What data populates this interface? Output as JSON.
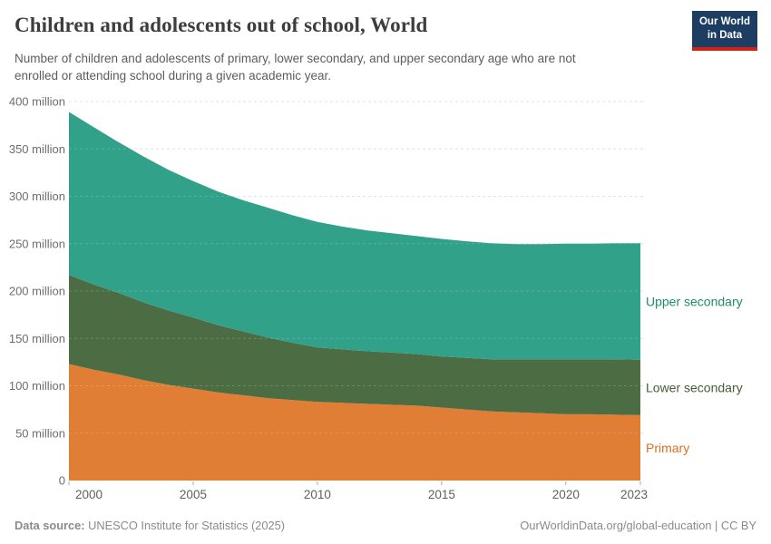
{
  "header": {
    "title": "Children and adolescents out of school, World",
    "subtitle": "Number of children and adolescents of primary, lower secondary, and upper secondary age who are not enrolled or attending school during a given academic year.",
    "logo": {
      "line1": "Our World",
      "line2": "in Data",
      "bg_color": "#1d3d63",
      "accent_color": "#cf2318"
    }
  },
  "chart_data": {
    "type": "area",
    "stacked": true,
    "title": "Children and adolescents out of school, World",
    "xlabel": "",
    "ylabel": "",
    "unit": "million",
    "xlim": [
      2000,
      2023
    ],
    "ylim": [
      0,
      400
    ],
    "grid": true,
    "legend_position": "right",
    "x": [
      2000,
      2001,
      2002,
      2003,
      2004,
      2005,
      2006,
      2007,
      2008,
      2009,
      2010,
      2011,
      2012,
      2013,
      2014,
      2015,
      2016,
      2017,
      2018,
      2019,
      2020,
      2021,
      2022,
      2023
    ],
    "series": [
      {
        "name": "Primary",
        "color": "#df7e34",
        "label_color": "#d9701e",
        "values": [
          123,
          117,
          112,
          106,
          101,
          97,
          93,
          90,
          87,
          85,
          83,
          82,
          81,
          80,
          79,
          77,
          75,
          73,
          72,
          71,
          70,
          70,
          69.5,
          69
        ]
      },
      {
        "name": "Lower secondary",
        "color": "#4c6c44",
        "label_color": "#405f33",
        "values": [
          94,
          90,
          86,
          82,
          78.5,
          75,
          71,
          67.5,
          64,
          60.5,
          57.5,
          56.5,
          55.5,
          55,
          54.5,
          54,
          54.5,
          55,
          56,
          57,
          58,
          58,
          58.5,
          58.5
        ]
      },
      {
        "name": "Upper secondary",
        "color": "#31a18a",
        "label_color": "#208b6c",
        "values": [
          172,
          166,
          159,
          154,
          148.5,
          144,
          141,
          138.5,
          137,
          134.5,
          132.5,
          129.5,
          127.5,
          126,
          124.5,
          124,
          123,
          122.5,
          121.5,
          121.5,
          122,
          122,
          122.5,
          123
        ]
      }
    ],
    "y_ticks": [
      {
        "value": 0,
        "label": "0"
      },
      {
        "value": 50,
        "label": "50 million"
      },
      {
        "value": 100,
        "label": "100 million"
      },
      {
        "value": 150,
        "label": "150 million"
      },
      {
        "value": 200,
        "label": "200 million"
      },
      {
        "value": 250,
        "label": "250 million"
      },
      {
        "value": 300,
        "label": "300 million"
      },
      {
        "value": 350,
        "label": "350 million"
      },
      {
        "value": 400,
        "label": "400 million"
      }
    ],
    "x_ticks": [
      2000,
      2005,
      2010,
      2015,
      2020,
      2023
    ]
  },
  "footer": {
    "source_label": "Data source:",
    "source_text": " UNESCO Institute for Statistics (2025)",
    "right_text": "OurWorldinData.org/global-education | CC BY"
  }
}
